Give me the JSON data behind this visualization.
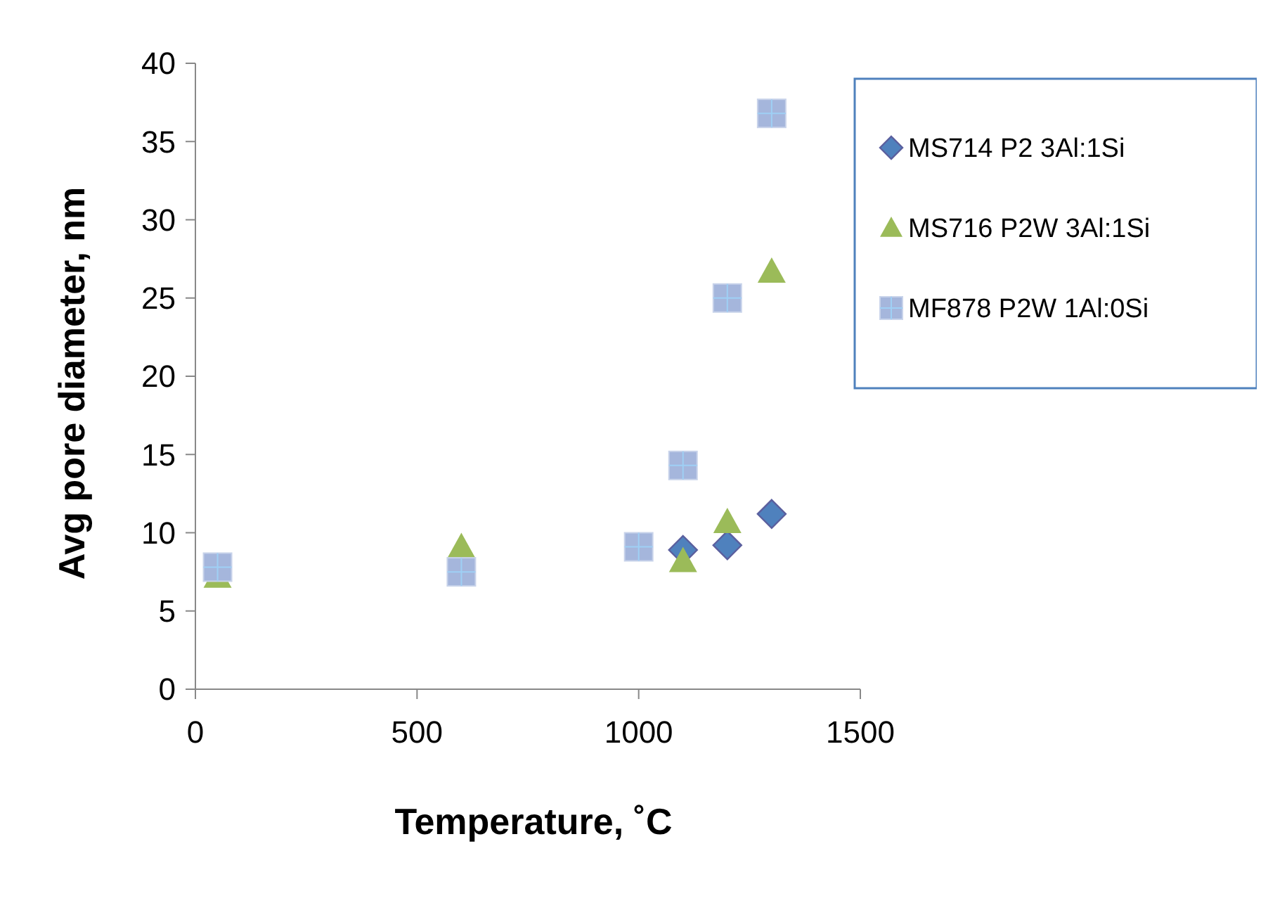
{
  "chart_data": {
    "type": "scatter",
    "xlabel": "Temperature, ˚C",
    "ylabel": "Avg pore diameter, nm",
    "xlim": [
      0,
      1500
    ],
    "xticks": [
      0,
      500,
      1000,
      1500
    ],
    "ylim": [
      0,
      40
    ],
    "yticks": [
      0,
      5,
      10,
      15,
      20,
      25,
      30,
      35,
      40
    ],
    "grid": false,
    "legend": "top right",
    "series": [
      {
        "name": "MS714 P2 3Al:1Si",
        "color": "#4f81bd",
        "marker": "diamond",
        "x": [
          1100,
          1200,
          1300
        ],
        "values": [
          8.9,
          9.2,
          11.2
        ]
      },
      {
        "name": "MS716 P2W 3Al:1Si",
        "color": "#9bbb59",
        "marker": "triangle",
        "x": [
          50,
          600,
          1100,
          1200,
          1300
        ],
        "values": [
          7.2,
          9.1,
          8.2,
          10.7,
          26.7
        ]
      },
      {
        "name": "MF878 P2W 1Al:0Si",
        "color": "#a5b6dc",
        "marker": "square",
        "x": [
          50,
          600,
          1000,
          1100,
          1200,
          1300
        ],
        "values": [
          7.8,
          7.5,
          9.1,
          14.3,
          25.0,
          36.8
        ]
      }
    ]
  }
}
